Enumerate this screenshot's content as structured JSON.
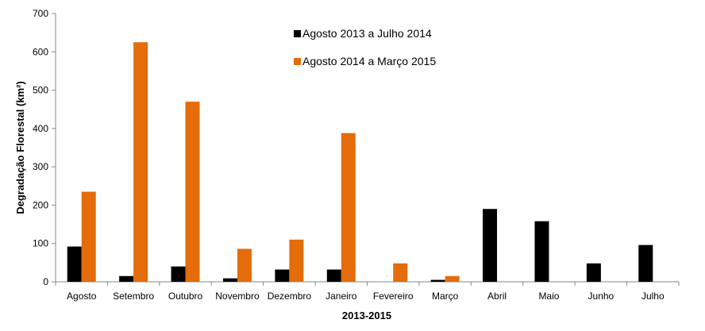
{
  "chart_data": {
    "type": "bar",
    "title": "",
    "xlabel": "2013-2015",
    "ylabel": "Degradação Florestal (km²)",
    "ylim": [
      0,
      700
    ],
    "yticks": [
      0,
      100,
      200,
      300,
      400,
      500,
      600,
      700
    ],
    "grid": false,
    "legend_position": "top-center",
    "categories": [
      "Agosto",
      "Setembro",
      "Outubro",
      "Novembro",
      "Dezembro",
      "Janeiro",
      "Fevereiro",
      "Março",
      "Abril",
      "Maio",
      "Junho",
      "Julho"
    ],
    "series": [
      {
        "name": "Agosto 2013 a Julho 2014",
        "color": "#000000",
        "values": [
          92,
          15,
          40,
          9,
          32,
          32,
          0,
          5,
          190,
          158,
          48,
          96
        ]
      },
      {
        "name": "Agosto 2014 a Março 2015",
        "color": "#E46C0A",
        "values": [
          235,
          625,
          470,
          86,
          110,
          388,
          48,
          15,
          null,
          null,
          null,
          null
        ]
      }
    ]
  }
}
